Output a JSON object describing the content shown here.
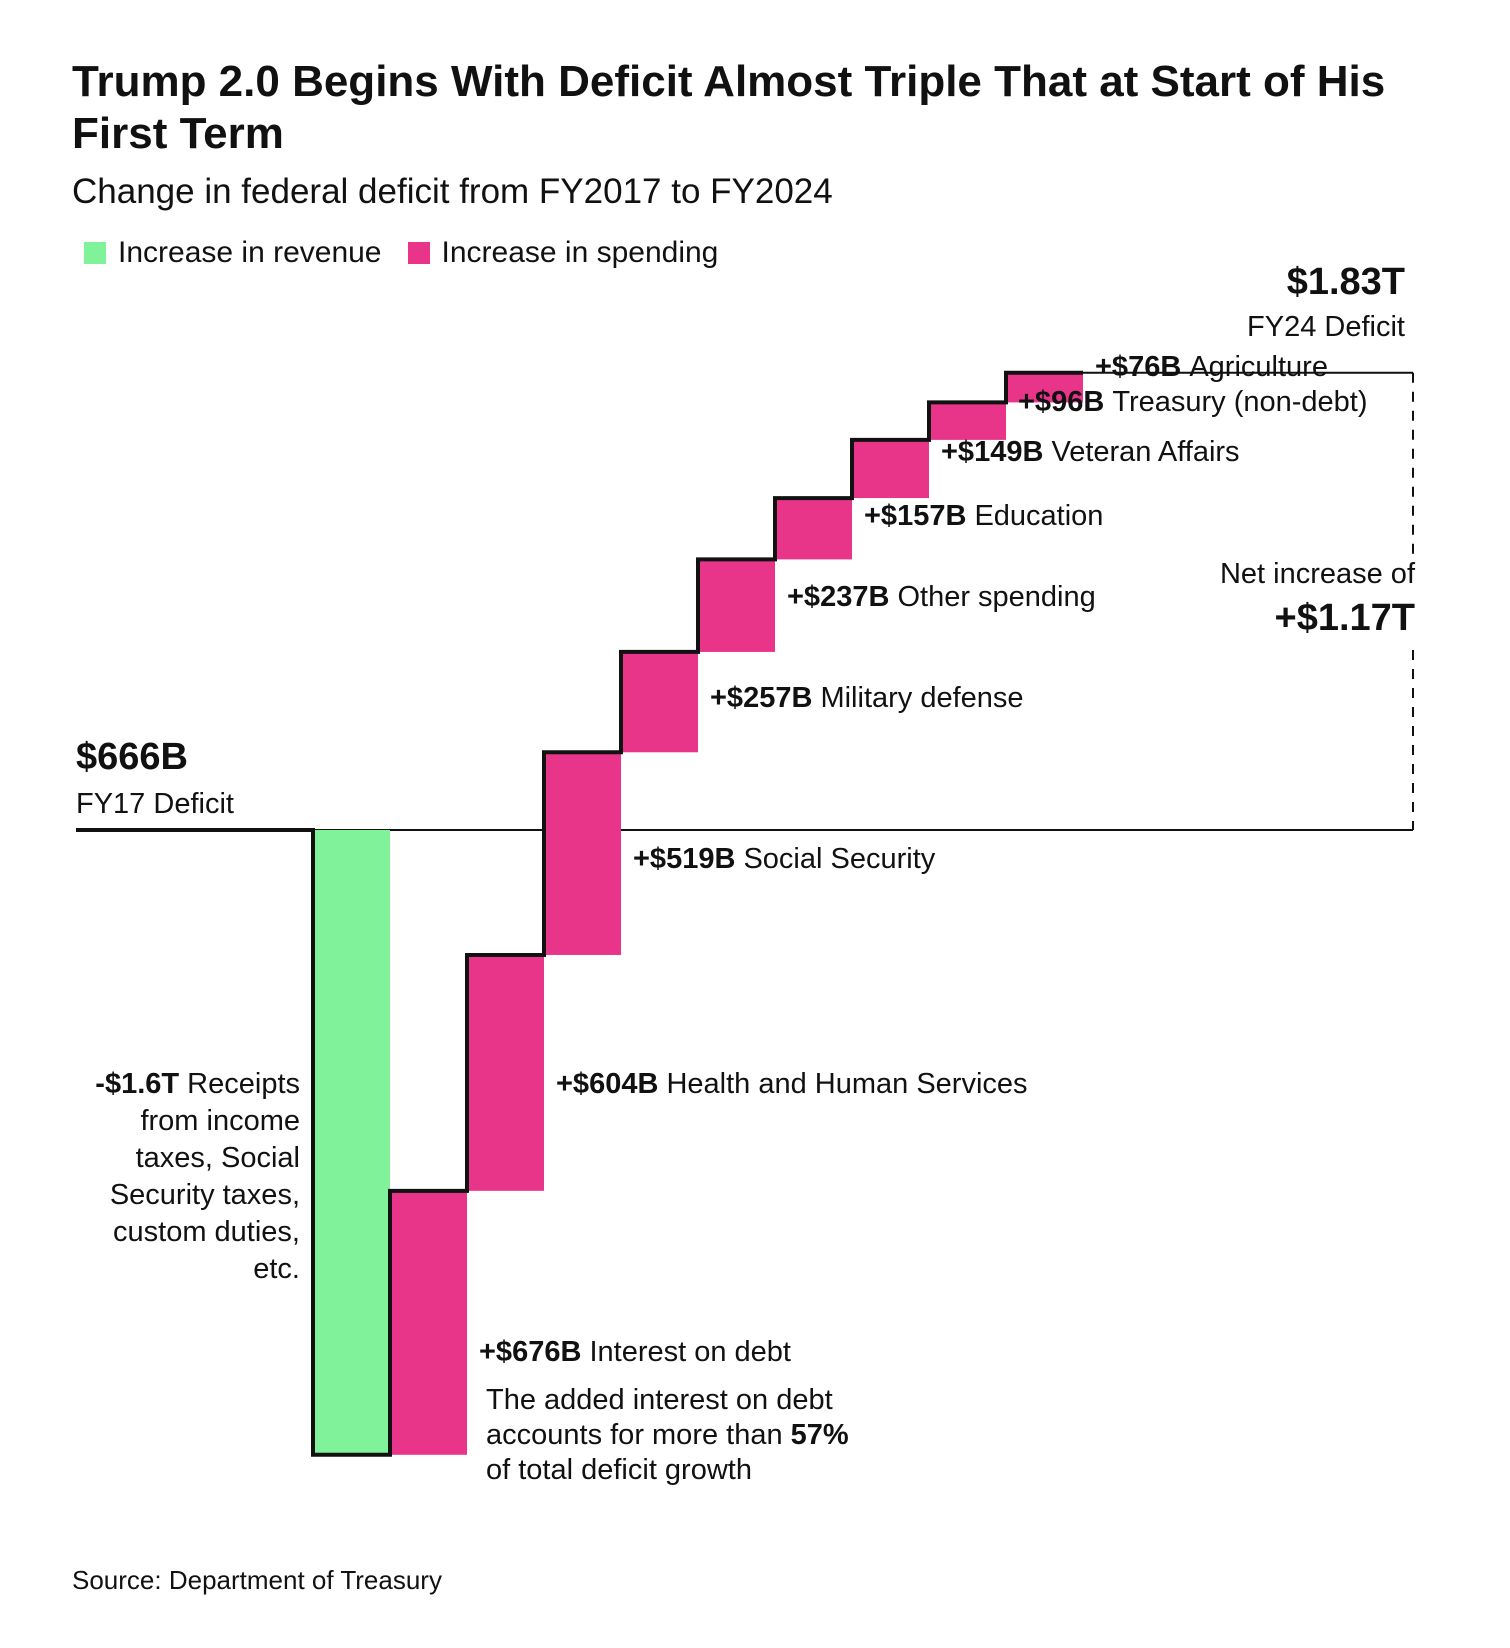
{
  "title": "Trump 2.0 Begins With Deficit Almost Triple That at Start of His First Term",
  "subtitle": "Change in federal deficit from FY2017 to FY2024",
  "legend": {
    "revenue_label": "Increase in revenue",
    "spending_label": "Increase in spending",
    "revenue_color": "#80F29A",
    "spending_color": "#E8358A"
  },
  "source": "Source: Department of Treasury",
  "chart_data": {
    "type": "waterfall",
    "title": "Trump 2.0 Begins With Deficit Almost Triple That at Start of His First Term",
    "subtitle": "Change in federal deficit from FY2017 to FY2024",
    "unit": "$B",
    "start": {
      "value": 666,
      "amount_label": "$666B",
      "label": "FY17 Deficit"
    },
    "end": {
      "value": 1830,
      "amount_label": "$1.83T",
      "label": "FY24 Deficit"
    },
    "net": {
      "label": "Net increase of",
      "amount_label": "+$1.17T",
      "value": 1170
    },
    "steps": [
      {
        "kind": "revenue",
        "value": -1600,
        "amount_label": "-$1.6T",
        "label": "Receipts from income taxes, Social Security taxes, custom duties, etc."
      },
      {
        "kind": "spending",
        "value": 676,
        "amount_label": "+$676B",
        "label": "Interest on debt"
      },
      {
        "kind": "spending",
        "value": 604,
        "amount_label": "+$604B",
        "label": "Health and Human Services"
      },
      {
        "kind": "spending",
        "value": 519,
        "amount_label": "+$519B",
        "label": "Social Security"
      },
      {
        "kind": "spending",
        "value": 257,
        "amount_label": "+$257B",
        "label": "Military defense"
      },
      {
        "kind": "spending",
        "value": 237,
        "amount_label": "+$237B",
        "label": "Other spending"
      },
      {
        "kind": "spending",
        "value": 157,
        "amount_label": "+$157B",
        "label": "Education"
      },
      {
        "kind": "spending",
        "value": 149,
        "amount_label": "+$149B",
        "label": "Veteran Affairs"
      },
      {
        "kind": "spending",
        "value": 96,
        "amount_label": "+$96B",
        "label": "Treasury (non-debt)"
      },
      {
        "kind": "spending",
        "value": 76,
        "amount_label": "+$76B",
        "label": "Agriculture"
      }
    ],
    "annotation": {
      "line1": "The added interest on debt",
      "line2_prefix": "accounts for more than ",
      "line2_bold": "57%",
      "line3": "of total deficit growth"
    },
    "colors": {
      "revenue": "#80F29A",
      "spending": "#E8358A",
      "outline": "#111111"
    }
  }
}
